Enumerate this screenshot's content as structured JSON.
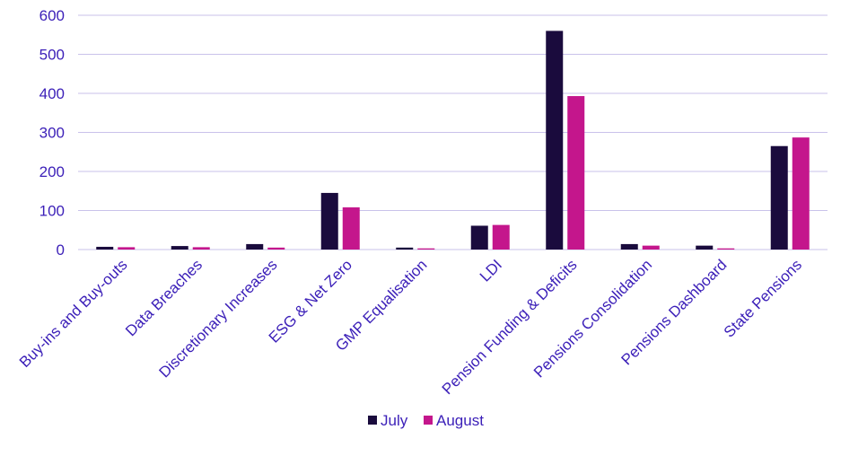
{
  "chart_data": {
    "type": "bar",
    "categories": [
      "Buy-ins and Buy-outs",
      "Data Breaches",
      "Discretionary Increases",
      "ESG & Net Zero",
      "GMP Equalisation",
      "LDI",
      "Pension Funding & Deficits",
      "Pensions Consolidation",
      "Pensions Dashboard",
      "State Pensions"
    ],
    "series": [
      {
        "name": "July",
        "color": "#1a0b3d",
        "values": [
          7,
          9,
          14,
          145,
          5,
          61,
          560,
          14,
          10,
          265
        ]
      },
      {
        "name": "August",
        "color": "#c4168c",
        "values": [
          6,
          6,
          5,
          108,
          3,
          63,
          393,
          10,
          3,
          287
        ]
      }
    ],
    "ylim": [
      0,
      600
    ],
    "yticks": [
      "0",
      "100",
      "200",
      "300",
      "400",
      "500",
      "600"
    ],
    "ytick_values": [
      0,
      100,
      200,
      300,
      400,
      500,
      600
    ],
    "grid": true,
    "legend_position": "bottom"
  }
}
